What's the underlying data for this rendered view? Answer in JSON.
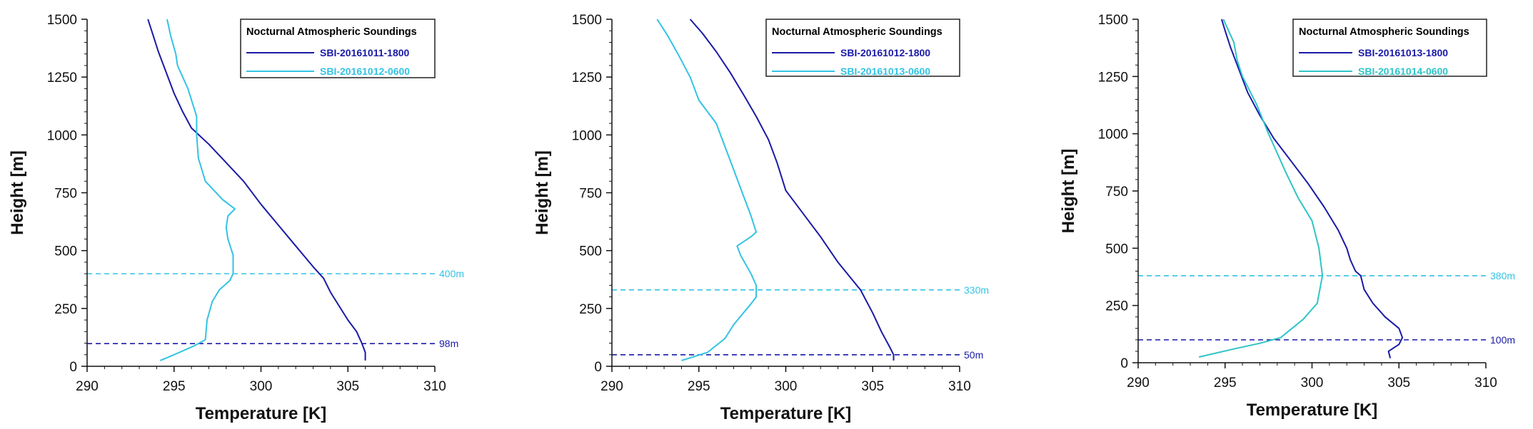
{
  "chart_data": [
    {
      "type": "line",
      "xlabel": "Temperature [K]",
      "ylabel": "Height [m]",
      "xlim": [
        290,
        310
      ],
      "ylim": [
        0,
        1500
      ],
      "xticks": [
        "290",
        "295",
        "300",
        "305",
        "310"
      ],
      "yticks": [
        "0",
        "250",
        "500",
        "750",
        "1000",
        "1250",
        "1500"
      ],
      "legend": {
        "title": "Nocturnal Atmospheric Soundings",
        "position": "top-right"
      },
      "series": [
        {
          "name": "SBI-20161011-1800",
          "color": "#1a1aa6",
          "points": [
            [
              306.0,
              25
            ],
            [
              306.0,
              60
            ],
            [
              305.8,
              100
            ],
            [
              305.5,
              150
            ],
            [
              305.0,
              200
            ],
            [
              304.5,
              260
            ],
            [
              304.0,
              320
            ],
            [
              303.6,
              380
            ],
            [
              303.0,
              430
            ],
            [
              302.0,
              520
            ],
            [
              301.0,
              610
            ],
            [
              300.0,
              700
            ],
            [
              299.0,
              800
            ],
            [
              298.0,
              880
            ],
            [
              297.0,
              960
            ],
            [
              296.0,
              1030
            ],
            [
              295.5,
              1100
            ],
            [
              295.0,
              1180
            ],
            [
              294.6,
              1260
            ],
            [
              294.1,
              1360
            ],
            [
              293.8,
              1430
            ],
            [
              293.5,
              1500
            ]
          ]
        },
        {
          "name": "SBI-20161012-0600",
          "color": "#33c3e3",
          "points": [
            [
              294.2,
              25
            ],
            [
              295.0,
              50
            ],
            [
              296.2,
              90
            ],
            [
              296.8,
              115
            ],
            [
              296.9,
              200
            ],
            [
              297.2,
              280
            ],
            [
              297.6,
              330
            ],
            [
              298.2,
              370
            ],
            [
              298.4,
              400
            ],
            [
              298.4,
              480
            ],
            [
              298.1,
              550
            ],
            [
              298.0,
              600
            ],
            [
              298.1,
              650
            ],
            [
              298.5,
              680
            ],
            [
              297.8,
              720
            ],
            [
              296.8,
              800
            ],
            [
              296.4,
              900
            ],
            [
              296.3,
              1000
            ],
            [
              296.3,
              1080
            ],
            [
              295.8,
              1200
            ],
            [
              295.2,
              1300
            ],
            [
              295.1,
              1350
            ],
            [
              294.8,
              1430
            ],
            [
              294.6,
              1500
            ]
          ]
        }
      ],
      "hlines": [
        {
          "y": 400,
          "label": "400m",
          "color": "#33c3e3"
        },
        {
          "y": 98,
          "label": "98m",
          "color": "#1a1aa6"
        }
      ]
    },
    {
      "type": "line",
      "xlabel": "Temperature [K]",
      "ylabel": "Height [m]",
      "xlim": [
        290,
        310
      ],
      "ylim": [
        0,
        1500
      ],
      "xticks": [
        "290",
        "295",
        "300",
        "305",
        "310"
      ],
      "yticks": [
        "0",
        "250",
        "500",
        "750",
        "1000",
        "1250",
        "1500"
      ],
      "legend": {
        "title": "Nocturnal Atmospheric Soundings",
        "position": "top-right"
      },
      "series": [
        {
          "name": "SBI-20161012-1800",
          "color": "#1a1aa6",
          "points": [
            [
              306.2,
              25
            ],
            [
              306.2,
              50
            ],
            [
              306.0,
              80
            ],
            [
              305.5,
              150
            ],
            [
              305.0,
              230
            ],
            [
              304.3,
              330
            ],
            [
              303.0,
              450
            ],
            [
              302.0,
              560
            ],
            [
              301.0,
              660
            ],
            [
              300.0,
              760
            ],
            [
              299.5,
              880
            ],
            [
              299.0,
              980
            ],
            [
              298.3,
              1080
            ],
            [
              297.6,
              1170
            ],
            [
              296.8,
              1270
            ],
            [
              296.0,
              1360
            ],
            [
              295.2,
              1440
            ],
            [
              294.5,
              1500
            ]
          ]
        },
        {
          "name": "SBI-20161013-0600",
          "color": "#33c3e3",
          "points": [
            [
              294.0,
              25
            ],
            [
              295.5,
              60
            ],
            [
              296.5,
              120
            ],
            [
              297.0,
              180
            ],
            [
              298.0,
              270
            ],
            [
              298.3,
              300
            ],
            [
              298.3,
              350
            ],
            [
              298.0,
              400
            ],
            [
              297.4,
              480
            ],
            [
              297.2,
              520
            ],
            [
              298.0,
              560
            ],
            [
              298.3,
              580
            ],
            [
              298.0,
              650
            ],
            [
              297.5,
              750
            ],
            [
              297.0,
              850
            ],
            [
              296.5,
              950
            ],
            [
              296.0,
              1050
            ],
            [
              295.0,
              1150
            ],
            [
              294.5,
              1250
            ],
            [
              293.8,
              1350
            ],
            [
              293.2,
              1430
            ],
            [
              292.6,
              1500
            ]
          ]
        }
      ],
      "hlines": [
        {
          "y": 330,
          "label": "330m",
          "color": "#33c3e3"
        },
        {
          "y": 50,
          "label": "50m",
          "color": "#1a1aa6"
        }
      ]
    },
    {
      "type": "line",
      "xlabel": "Temperature [K]",
      "ylabel": "Height [m]",
      "xlim": [
        290,
        310
      ],
      "ylim": [
        0,
        1500
      ],
      "xticks": [
        "290",
        "295",
        "300",
        "305",
        "310"
      ],
      "yticks": [
        "0",
        "250",
        "500",
        "750",
        "1000",
        "1250",
        "1500"
      ],
      "legend": {
        "title": "Nocturnal Atmospheric Soundings",
        "position": "top-right"
      },
      "series": [
        {
          "name": "SBI-20161013-1800",
          "color": "#1a1aa6",
          "points": [
            [
              304.5,
              20
            ],
            [
              304.4,
              50
            ],
            [
              305.0,
              80
            ],
            [
              305.2,
              110
            ],
            [
              305.0,
              150
            ],
            [
              304.2,
              200
            ],
            [
              303.5,
              260
            ],
            [
              303.0,
              320
            ],
            [
              302.8,
              380
            ],
            [
              302.5,
              400
            ],
            [
              302.2,
              450
            ],
            [
              302.0,
              500
            ],
            [
              301.5,
              580
            ],
            [
              300.7,
              680
            ],
            [
              299.8,
              780
            ],
            [
              298.8,
              880
            ],
            [
              297.8,
              980
            ],
            [
              297.0,
              1080
            ],
            [
              296.3,
              1180
            ],
            [
              295.8,
              1280
            ],
            [
              295.3,
              1380
            ],
            [
              295.0,
              1450
            ],
            [
              294.8,
              1500
            ]
          ]
        },
        {
          "name": "SBI-20161014-0600",
          "color": "#2ec4c7",
          "points": [
            [
              293.5,
              25
            ],
            [
              295.5,
              60
            ],
            [
              297.0,
              85
            ],
            [
              298.2,
              110
            ],
            [
              299.5,
              190
            ],
            [
              300.3,
              260
            ],
            [
              300.6,
              380
            ],
            [
              300.4,
              500
            ],
            [
              300.0,
              620
            ],
            [
              299.2,
              720
            ],
            [
              298.5,
              830
            ],
            [
              297.5,
              1000
            ],
            [
              296.8,
              1130
            ],
            [
              296.0,
              1250
            ],
            [
              295.7,
              1320
            ],
            [
              295.5,
              1400
            ],
            [
              295.2,
              1450
            ],
            [
              294.9,
              1500
            ]
          ]
        }
      ],
      "hlines": [
        {
          "y": 380,
          "label": "380m",
          "color": "#33c3e3"
        },
        {
          "y": 100,
          "label": "100m",
          "color": "#1a1aa6"
        }
      ]
    }
  ]
}
